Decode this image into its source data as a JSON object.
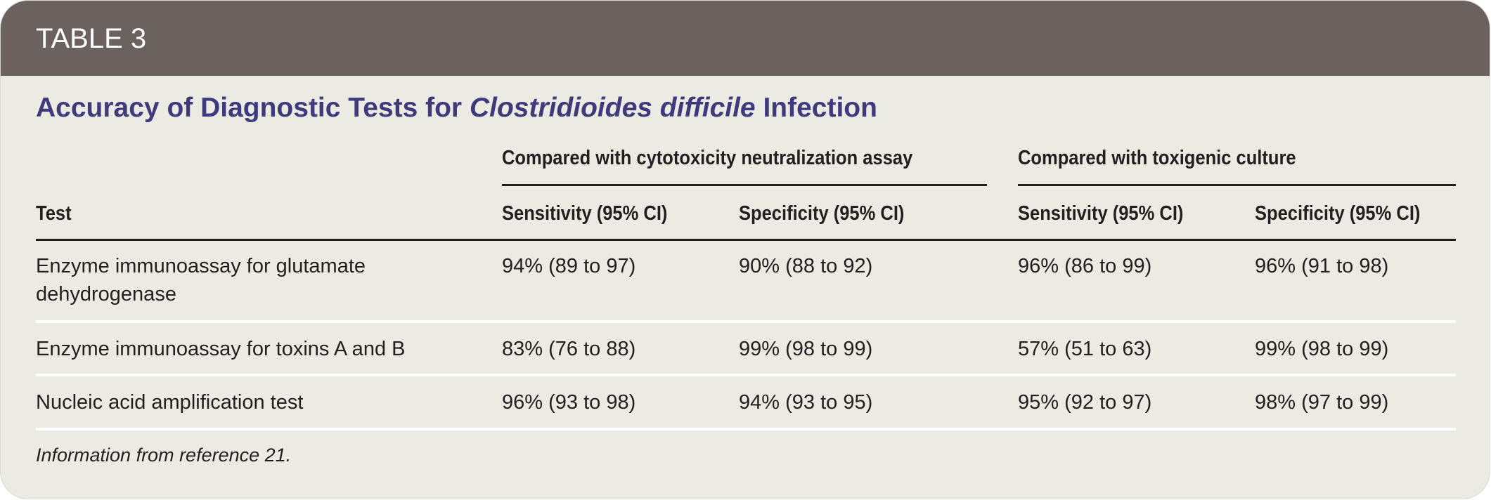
{
  "header": {
    "label": "TABLE 3"
  },
  "title": {
    "prefix": "Accuracy of Diagnostic Tests for ",
    "italic": "Clostridioides difficile",
    "suffix": " Infection"
  },
  "groups": [
    "Compared with cytotoxicity neutralization assay",
    "Compared with toxigenic culture"
  ],
  "columns": [
    "Test",
    "Sensitivity (95% CI)",
    "Specificity (95% CI)",
    "Sensitivity (95% CI)",
    "Specificity (95% CI)"
  ],
  "rows": [
    {
      "test": "Enzyme immunoassay for glutamate",
      "test2": "dehydrogenase",
      "v": [
        "94% (89 to 97)",
        "90% (88 to 92)",
        "96% (86 to 99)",
        "96% (91 to 98)"
      ]
    },
    {
      "test": "Enzyme immunoassay for toxins A and B",
      "v": [
        "83% (76 to 88)",
        "99% (98 to 99)",
        "57% (51 to 63)",
        "99% (98 to 99)"
      ]
    },
    {
      "test": "Nucleic acid amplification test",
      "v": [
        "96% (93 to 98)",
        "94% (93 to 95)",
        "95% (92 to 97)",
        "98% (97 to 99)"
      ]
    }
  ],
  "footnote": "Information from reference 21."
}
